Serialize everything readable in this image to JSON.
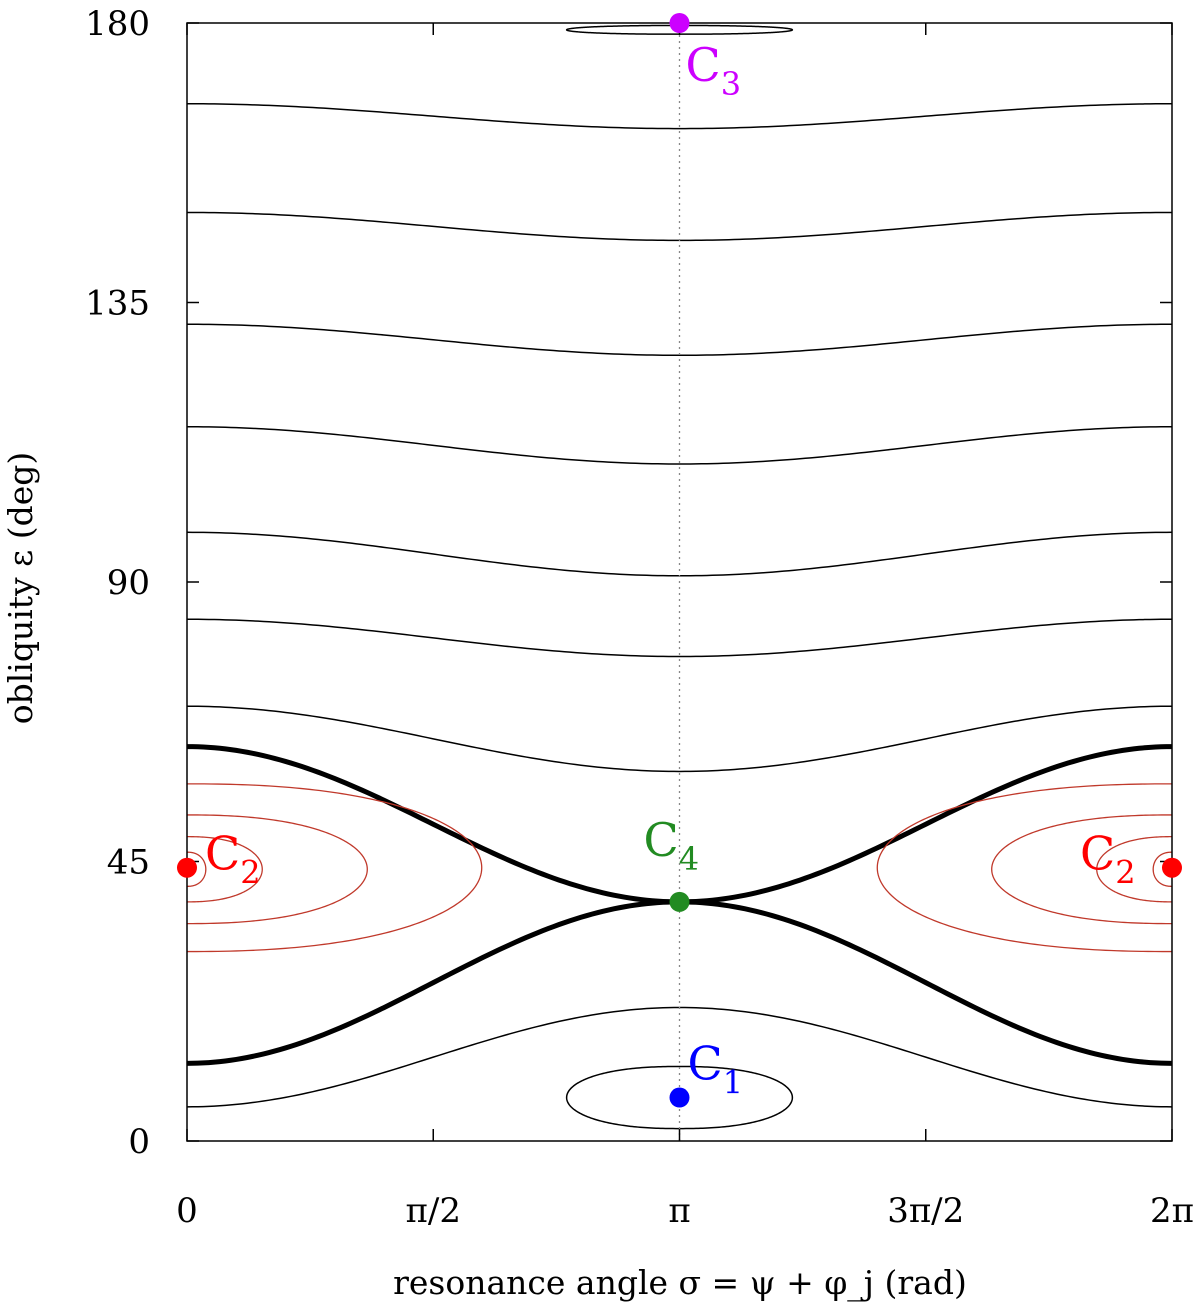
{
  "chart_data": {
    "type": "line",
    "title": "",
    "xlabel": "resonance angle σ = ψ + φ_j (rad)",
    "ylabel": "obliquity ε (deg)",
    "xlim": [
      0,
      6.283185307
    ],
    "ylim": [
      0,
      180
    ],
    "x_ticks": [
      {
        "value": 0,
        "label": "0"
      },
      {
        "value": 1.570796,
        "label": "π/2"
      },
      {
        "value": 3.141593,
        "label": "π"
      },
      {
        "value": 4.712389,
        "label": "3π/2"
      },
      {
        "value": 6.283185,
        "label": "2π"
      }
    ],
    "y_ticks": [
      {
        "value": 0,
        "label": "0"
      },
      {
        "value": 45,
        "label": "45"
      },
      {
        "value": 90,
        "label": "90"
      },
      {
        "value": 135,
        "label": "135"
      },
      {
        "value": 180,
        "label": "180"
      }
    ],
    "reference_line": {
      "x": 3.141593,
      "style": "dotted",
      "color": "#888888"
    },
    "colors": {
      "circulation": "#000000",
      "separatrix": "#000000",
      "libration_C2": "#c0392b",
      "C1": "#0000ff",
      "C2": "#ff0000",
      "C3": "#cc00ff",
      "C4": "#228b22"
    },
    "circulation_levels": [
      {
        "eps_at_0": 167.0,
        "eps_at_pi": 163.0
      },
      {
        "eps_at_0": 149.5,
        "eps_at_pi": 145.0
      },
      {
        "eps_at_0": 131.5,
        "eps_at_pi": 126.5
      },
      {
        "eps_at_0": 115.0,
        "eps_at_pi": 109.0
      },
      {
        "eps_at_0": 98.0,
        "eps_at_pi": 91.0
      },
      {
        "eps_at_0": 84.0,
        "eps_at_pi": 78.0
      },
      {
        "eps_at_0": 70.0,
        "eps_at_pi": 59.5
      },
      {
        "eps_at_0": 5.5,
        "eps_at_pi": 21.5
      }
    ],
    "separatrix": {
      "eps_at_0_upper": 63.5,
      "eps_at_0_lower": 12.5,
      "eps_at_pi": 38.5
    },
    "C1_librations": [
      {
        "center_eps": 7.0,
        "eps_min": 2.0,
        "eps_max": 12.0,
        "sigma_halfwidth": 0.72
      }
    ],
    "C2_librations": [
      {
        "eps_min": 30.5,
        "eps_max": 57.5,
        "sigma_halfwidth": 1.88
      },
      {
        "eps_min": 35.0,
        "eps_max": 52.5,
        "sigma_halfwidth": 1.15
      },
      {
        "eps_min": 38.5,
        "eps_max": 49.0,
        "sigma_halfwidth": 0.48
      },
      {
        "eps_min": 41.0,
        "eps_max": 46.5,
        "sigma_halfwidth": 0.12
      }
    ],
    "C3_libration": {
      "eps_min": 178.2,
      "eps_max": 179.6,
      "sigma_halfwidth": 0.72
    },
    "cassini_states": [
      {
        "name": "C1",
        "letter": "C",
        "sub": "1",
        "sigma": 3.141593,
        "eps": 7.0
      },
      {
        "name": "C2",
        "letter": "C",
        "sub": "2",
        "sigma": 0,
        "eps": 44.0
      },
      {
        "name": "C2",
        "letter": "C",
        "sub": "2",
        "sigma": 6.283185,
        "eps": 44.0
      },
      {
        "name": "C3",
        "letter": "C",
        "sub": "3",
        "sigma": 3.141593,
        "eps": 180.0
      },
      {
        "name": "C4",
        "letter": "C",
        "sub": "4",
        "sigma": 3.141593,
        "eps": 38.5
      }
    ]
  }
}
